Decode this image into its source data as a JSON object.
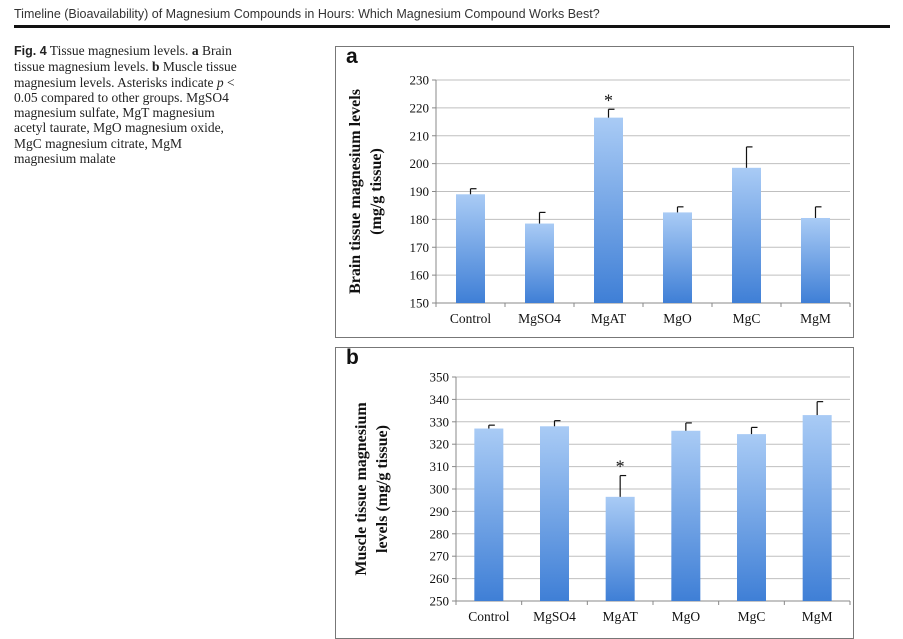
{
  "header": {
    "title": "Timeline (Bioavailability) of Magnesium Compounds in Hours: Which Magnesium Compound Works Best?"
  },
  "caption": {
    "fig_label": "Fig. 4",
    "title": "Tissue magnesium levels.",
    "a_label": "a",
    "a_text": "Brain tissue magnesium levels.",
    "b_label": "b",
    "b_text": "Muscle tissue magnesium levels. Asterisks indicate",
    "p_symbol": "p",
    "p_text": " < 0.05 compared to other groups. MgSO4 magnesium sulfate, MgT magnesium acetyl taurate, MgO magnesium oxide, MgC magnesium citrate, MgM magnesium malate"
  },
  "colors": {
    "bar_top": "#a9cbf5",
    "bar_bottom": "#3f7fd6",
    "gridline": "#bfbfbf",
    "axis": "#888888"
  },
  "chart_data": [
    {
      "panel": "a",
      "type": "bar",
      "ylabel_line1": "Brain tissue magnesium levels",
      "ylabel_line2": "(mg/g tissue)",
      "categories": [
        "Control",
        "MgSO4",
        "MgAT",
        "MgO",
        "MgC",
        "MgM"
      ],
      "values": [
        189,
        178.5,
        216.5,
        182.5,
        198.5,
        180.5
      ],
      "errors": [
        2,
        4,
        3,
        2,
        7.5,
        4
      ],
      "significance": [
        "",
        "",
        "*",
        "",
        "",
        ""
      ],
      "ylim": [
        150,
        230
      ],
      "yticks": [
        150,
        160,
        170,
        180,
        190,
        200,
        210,
        220,
        230
      ],
      "grid": true
    },
    {
      "panel": "b",
      "type": "bar",
      "ylabel_line1": "Muscle tissue magnesium",
      "ylabel_line2": "levels (mg/g tissue)",
      "categories": [
        "Control",
        "MgSO4",
        "MgAT",
        "MgO",
        "MgC",
        "MgM"
      ],
      "values": [
        327,
        328,
        296.5,
        326,
        324.5,
        333
      ],
      "errors": [
        1.5,
        2.5,
        9.5,
        3.5,
        3,
        6
      ],
      "significance": [
        "",
        "",
        "*",
        "",
        "",
        ""
      ],
      "ylim": [
        250,
        350
      ],
      "yticks": [
        250,
        260,
        270,
        280,
        290,
        300,
        310,
        320,
        330,
        340,
        350
      ],
      "grid": true
    }
  ]
}
